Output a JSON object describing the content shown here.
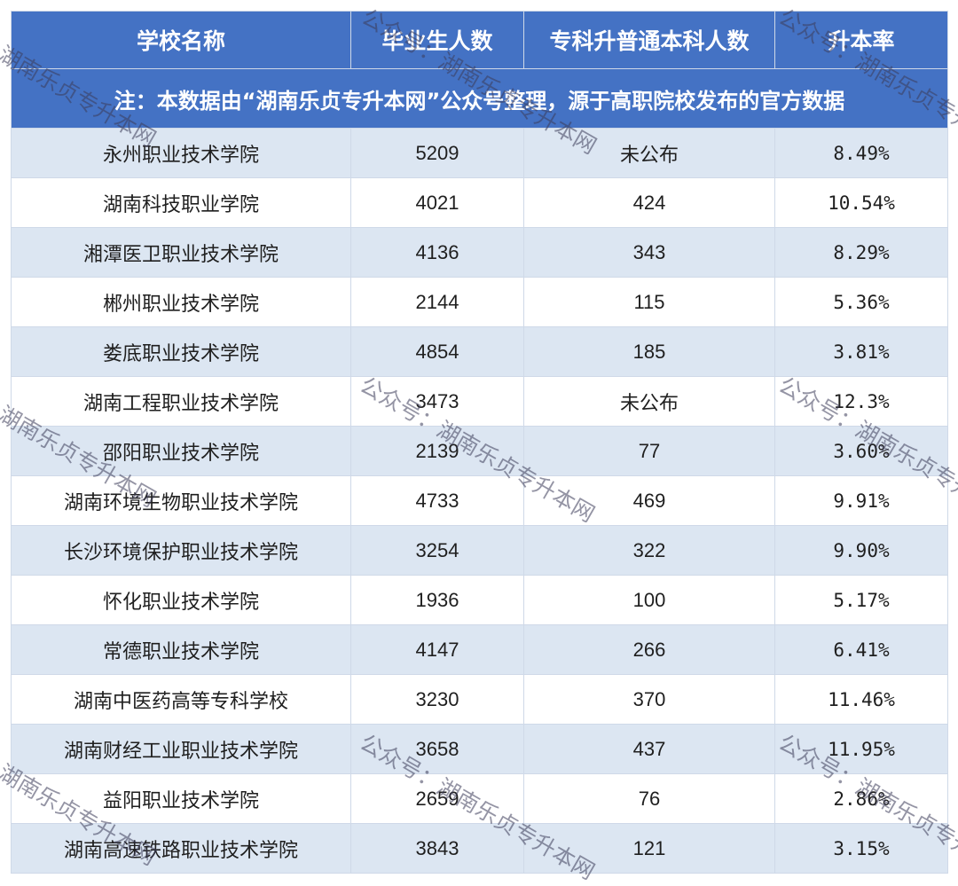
{
  "table": {
    "headers": [
      "学校名称",
      "毕业生人数",
      "专科升普通本科人数",
      "升本率"
    ],
    "note": "注：本数据由“湖南乐贞专升本网”公众号整理，源于高职院校发布的官方数据",
    "rows": [
      [
        "永州职业技术学院",
        "5209",
        "未公布",
        "8.49%"
      ],
      [
        "湖南科技职业学院",
        "4021",
        "424",
        "10.54%"
      ],
      [
        "湘潭医卫职业技术学院",
        "4136",
        "343",
        "8.29%"
      ],
      [
        "郴州职业技术学院",
        "2144",
        "115",
        "5.36%"
      ],
      [
        "娄底职业技术学院",
        "4854",
        "185",
        "3.81%"
      ],
      [
        "湖南工程职业技术学院",
        "3473",
        "未公布",
        "12.3%"
      ],
      [
        "邵阳职业技术学院",
        "2139",
        "77",
        "3.60%"
      ],
      [
        "湖南环境生物职业技术学院",
        "4733",
        "469",
        "9.91%"
      ],
      [
        "长沙环境保护职业技术学院",
        "3254",
        "322",
        "9.90%"
      ],
      [
        "怀化职业技术学院",
        "1936",
        "100",
        "5.17%"
      ],
      [
        "常德职业技术学院",
        "4147",
        "266",
        "6.41%"
      ],
      [
        "湖南中医药高等专科学校",
        "3230",
        "370",
        "11.46%"
      ],
      [
        "湖南财经工业职业技术学院",
        "3658",
        "437",
        "11.95%"
      ],
      [
        "益阳职业技术学院",
        "2659",
        "76",
        "2.86%"
      ],
      [
        "湖南高速铁路职业技术学院",
        "3843",
        "121",
        "3.15%"
      ]
    ]
  },
  "watermark": {
    "text_full": "公众号：湖南乐贞专升本网",
    "text_partial": "湖南乐贞专升本网"
  },
  "colors": {
    "header_bg": "#4472c4",
    "stripe_bg": "#dce6f2"
  }
}
